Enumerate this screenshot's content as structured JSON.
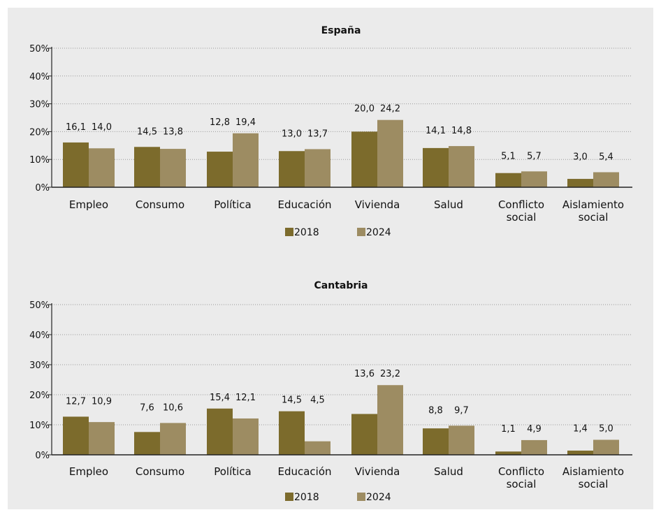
{
  "colors": {
    "panel": "#ebebeb",
    "series_2018": "#7c6b2c",
    "series_2024": "#9d8c62",
    "grid": "#9a9a9a",
    "axis": "#222222"
  },
  "chart_data": [
    {
      "type": "bar",
      "title": "España",
      "categories": [
        [
          "Empleo"
        ],
        [
          "Consumo"
        ],
        [
          "Política"
        ],
        [
          "Educación"
        ],
        [
          "Vivienda"
        ],
        [
          "Salud"
        ],
        [
          "Conflicto",
          "social"
        ],
        [
          "Aislamiento",
          "social"
        ]
      ],
      "series": [
        {
          "name": "2018",
          "values": [
            16.1,
            14.5,
            12.8,
            13.0,
            20.0,
            14.1,
            5.1,
            3.0
          ],
          "labels": [
            "16,1",
            "14,5",
            "12,8",
            "13,0",
            "20,0",
            "14,1",
            "5,1",
            "3,0"
          ]
        },
        {
          "name": "2024",
          "values": [
            14.0,
            13.8,
            19.4,
            13.7,
            24.2,
            14.8,
            5.7,
            5.4
          ],
          "labels": [
            "14,0",
            "13,8",
            "19,4",
            "13,7",
            "24,2",
            "14,8",
            "5,7",
            "5,4"
          ]
        }
      ],
      "yticks": [
        "0%",
        "10%",
        "20%",
        "30%",
        "40%",
        "50%"
      ],
      "ylim": [
        0,
        50
      ],
      "grid": true,
      "legend": "bottom"
    },
    {
      "type": "bar",
      "title": "Cantabria",
      "categories": [
        [
          "Empleo"
        ],
        [
          "Consumo"
        ],
        [
          "Política"
        ],
        [
          "Educación"
        ],
        [
          "Vivienda"
        ],
        [
          "Salud"
        ],
        [
          "Conflicto",
          "social"
        ],
        [
          "Aislamiento",
          "social"
        ]
      ],
      "series": [
        {
          "name": "2018",
          "values": [
            12.7,
            7.6,
            15.4,
            14.5,
            13.6,
            8.8,
            1.1,
            1.4
          ],
          "labels": [
            "12,7",
            "7,6",
            "15,4",
            "14,5",
            "13,6",
            "8,8",
            "1,1",
            "1,4"
          ]
        },
        {
          "name": "2024",
          "values": [
            10.9,
            10.6,
            12.1,
            4.5,
            23.2,
            9.7,
            4.9,
            5.0
          ],
          "labels": [
            "10,9",
            "10,6",
            "12,1",
            "4,5",
            "23,2",
            "9,7",
            "4,9",
            "5,0"
          ]
        }
      ],
      "yticks": [
        "0%",
        "10%",
        "20%",
        "30%",
        "40%",
        "50%"
      ],
      "ylim": [
        0,
        50
      ],
      "grid": true,
      "legend": "bottom"
    }
  ]
}
